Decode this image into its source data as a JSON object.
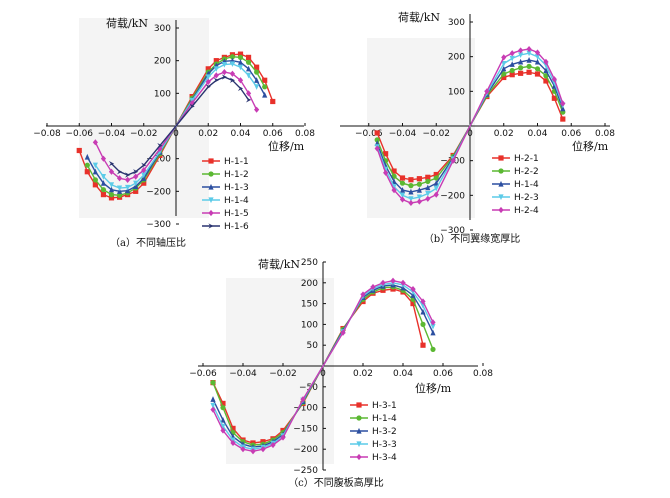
{
  "chart_data": [
    {
      "type": "line",
      "panel": "a",
      "caption": "（a）不同轴压比",
      "xlabel": "位移/m",
      "ylabel": "荷载/kN",
      "xlim": [
        -0.08,
        0.08
      ],
      "ylim": [
        -300,
        300
      ],
      "xticks": [
        -0.08,
        -0.06,
        -0.04,
        -0.02,
        0,
        0.02,
        0.04,
        0.06,
        0.08
      ],
      "yticks": [
        -300,
        -200,
        -100,
        0,
        100,
        200,
        300
      ],
      "xtick_labels": [
        "−0.08",
        "−0.06",
        "−0.04",
        "−0.02",
        "0",
        "0.02",
        "0.04",
        "0.06",
        "0.08"
      ],
      "ytick_labels": [
        "−300",
        "−200",
        "−100",
        "0",
        "100",
        "200",
        "300"
      ],
      "legend_position": "right",
      "series": [
        {
          "name": "H-1-1",
          "color": "#e8312a",
          "marker": "square",
          "x": [
            0,
            0.01,
            0.02,
            0.025,
            0.03,
            0.035,
            0.04,
            0.045,
            0.05,
            0.055,
            0.06,
            -0.01,
            -0.02,
            -0.025,
            -0.03,
            -0.035,
            -0.04,
            -0.045,
            -0.05,
            -0.055,
            -0.06
          ],
          "y": [
            0,
            90,
            175,
            200,
            210,
            218,
            220,
            210,
            180,
            140,
            75,
            -90,
            -175,
            -200,
            -210,
            -218,
            -220,
            -210,
            -180,
            -140,
            -75
          ]
        },
        {
          "name": "H-1-2",
          "color": "#5bb832",
          "marker": "circle",
          "x": [
            0,
            0.01,
            0.02,
            0.025,
            0.03,
            0.035,
            0.04,
            0.045,
            0.05,
            0.055,
            -0.01,
            -0.02,
            -0.025,
            -0.03,
            -0.035,
            -0.04,
            -0.045,
            -0.05,
            -0.055
          ],
          "y": [
            0,
            85,
            165,
            190,
            205,
            212,
            210,
            195,
            165,
            120,
            -85,
            -165,
            -190,
            -205,
            -212,
            -210,
            -195,
            -165,
            -120
          ]
        },
        {
          "name": "H-1-3",
          "color": "#2c4fa0",
          "marker": "triangle",
          "x": [
            0,
            0.01,
            0.02,
            0.025,
            0.03,
            0.035,
            0.04,
            0.045,
            0.05,
            0.055,
            -0.01,
            -0.02,
            -0.025,
            -0.03,
            -0.035,
            -0.04,
            -0.045,
            -0.05,
            -0.055
          ],
          "y": [
            0,
            80,
            160,
            185,
            198,
            200,
            195,
            175,
            140,
            95,
            -80,
            -160,
            -185,
            -198,
            -200,
            -195,
            -175,
            -140,
            -95
          ]
        },
        {
          "name": "H-1-4",
          "color": "#5ccbe8",
          "marker": "triangle-down",
          "x": [
            0,
            0.01,
            0.02,
            0.025,
            0.03,
            0.035,
            0.04,
            0.045,
            0.05,
            -0.01,
            -0.02,
            -0.025,
            -0.03,
            -0.035,
            -0.04,
            -0.045,
            -0.05
          ],
          "y": [
            0,
            78,
            150,
            175,
            188,
            190,
            180,
            155,
            120,
            -78,
            -150,
            -175,
            -188,
            -190,
            -180,
            -155,
            -120
          ]
        },
        {
          "name": "H-1-5",
          "color": "#c83cb4",
          "marker": "diamond",
          "x": [
            0,
            0.01,
            0.02,
            0.025,
            0.03,
            0.035,
            0.04,
            0.045,
            0.05,
            -0.01,
            -0.02,
            -0.025,
            -0.03,
            -0.035,
            -0.04,
            -0.045,
            -0.05
          ],
          "y": [
            0,
            70,
            135,
            155,
            165,
            160,
            140,
            100,
            50,
            -70,
            -135,
            -155,
            -165,
            -160,
            -140,
            -100,
            -50
          ]
        },
        {
          "name": "H-1-6",
          "color": "#2a3470",
          "marker": "arrow",
          "x": [
            0,
            0.01,
            0.02,
            0.025,
            0.03,
            0.035,
            0.04,
            0.045,
            -0.01,
            -0.02,
            -0.025,
            -0.03,
            -0.035,
            -0.04
          ],
          "y": [
            0,
            60,
            120,
            140,
            150,
            140,
            115,
            80,
            -60,
            -120,
            -140,
            -150,
            -140,
            -115
          ]
        }
      ]
    },
    {
      "type": "line",
      "panel": "b",
      "caption": "（b）不同翼缘宽厚比",
      "xlabel": "位移/m",
      "ylabel": "荷载/kN",
      "xlim": [
        -0.08,
        0.08
      ],
      "ylim": [
        -300,
        300
      ],
      "xticks": [
        -0.06,
        -0.04,
        -0.02,
        0,
        0.02,
        0.04,
        0.06,
        0.08
      ],
      "yticks": [
        -300,
        -200,
        -100,
        0,
        100,
        200,
        300
      ],
      "xtick_labels": [
        "−0.06",
        "−0.04",
        "−0.02",
        "0",
        "0.02",
        "0.04",
        "0.06",
        "0.08"
      ],
      "ytick_labels": [
        "−300",
        "−200",
        "−100",
        "0",
        "100",
        "200",
        "300"
      ],
      "legend_position": "right",
      "series": [
        {
          "name": "H-2-1",
          "color": "#e8312a",
          "marker": "square",
          "x": [
            0,
            0.01,
            0.02,
            0.025,
            0.03,
            0.035,
            0.04,
            0.045,
            0.05,
            0.055,
            -0.01,
            -0.02,
            -0.025,
            -0.03,
            -0.035,
            -0.04,
            -0.045,
            -0.05,
            -0.055
          ],
          "y": [
            0,
            85,
            140,
            148,
            152,
            155,
            150,
            130,
            80,
            20,
            -85,
            -140,
            -148,
            -152,
            -155,
            -150,
            -130,
            -80,
            -20
          ]
        },
        {
          "name": "H-2-2",
          "color": "#5bb832",
          "marker": "circle",
          "x": [
            0,
            0.01,
            0.02,
            0.025,
            0.03,
            0.035,
            0.04,
            0.045,
            0.05,
            0.055,
            -0.01,
            -0.02,
            -0.025,
            -0.03,
            -0.035,
            -0.04,
            -0.045,
            -0.05,
            -0.055
          ],
          "y": [
            0,
            88,
            150,
            160,
            168,
            172,
            165,
            145,
            100,
            40,
            -88,
            -150,
            -160,
            -168,
            -172,
            -165,
            -145,
            -100,
            -40
          ]
        },
        {
          "name": "H-1-4",
          "color": "#2c4fa0",
          "marker": "triangle",
          "x": [
            0,
            0.01,
            0.02,
            0.025,
            0.03,
            0.035,
            0.04,
            0.045,
            0.05,
            0.055,
            -0.01,
            -0.02,
            -0.025,
            -0.03,
            -0.035,
            -0.04,
            -0.045,
            -0.05,
            -0.055
          ],
          "y": [
            0,
            92,
            165,
            178,
            185,
            190,
            185,
            160,
            115,
            50,
            -92,
            -165,
            -178,
            -185,
            -190,
            -185,
            -160,
            -115,
            -50
          ]
        },
        {
          "name": "H-2-3",
          "color": "#5ccbe8",
          "marker": "triangle-down",
          "x": [
            0,
            0.01,
            0.02,
            0.025,
            0.03,
            0.035,
            0.04,
            0.045,
            0.05,
            0.055,
            -0.01,
            -0.02,
            -0.025,
            -0.03,
            -0.035,
            -0.04,
            -0.045,
            -0.05,
            -0.055
          ],
          "y": [
            0,
            95,
            180,
            195,
            205,
            210,
            200,
            175,
            125,
            60,
            -95,
            -180,
            -195,
            -205,
            -210,
            -200,
            -175,
            -125,
            -60
          ]
        },
        {
          "name": "H-2-4",
          "color": "#c83cb4",
          "marker": "diamond",
          "x": [
            0,
            0.01,
            0.02,
            0.025,
            0.03,
            0.035,
            0.04,
            0.045,
            0.05,
            0.055,
            -0.01,
            -0.02,
            -0.025,
            -0.03,
            -0.035,
            -0.04,
            -0.045,
            -0.05,
            -0.055
          ],
          "y": [
            0,
            100,
            198,
            210,
            218,
            222,
            212,
            185,
            135,
            65,
            -100,
            -198,
            -210,
            -218,
            -222,
            -212,
            -185,
            -135,
            -65
          ]
        }
      ]
    },
    {
      "type": "line",
      "panel": "c",
      "caption": "（c）不同腹板高厚比",
      "xlabel": "位移/m",
      "ylabel": "荷载/kN",
      "xlim": [
        -0.06,
        0.08
      ],
      "ylim": [
        -250,
        250
      ],
      "xticks": [
        -0.06,
        -0.04,
        -0.02,
        0,
        0.02,
        0.04,
        0.06,
        0.08
      ],
      "yticks": [
        -250,
        -200,
        -150,
        -100,
        -50,
        0,
        50,
        100,
        150,
        200,
        250
      ],
      "xtick_labels": [
        "−0.06",
        "−0.04",
        "−0.02",
        "0",
        "0.02",
        "0.04",
        "0.06",
        "0.08"
      ],
      "ytick_labels": [
        "−250",
        "−200",
        "−150",
        "−100",
        "−50",
        "0",
        "50",
        "100",
        "150",
        "200",
        "250"
      ],
      "legend_position": "left",
      "series": [
        {
          "name": "H-3-1",
          "color": "#e8312a",
          "marker": "square",
          "x": [
            0,
            0.01,
            0.02,
            0.025,
            0.03,
            0.035,
            0.04,
            0.045,
            0.05,
            -0.01,
            -0.02,
            -0.025,
            -0.03,
            -0.035,
            -0.04,
            -0.045,
            -0.05,
            -0.055
          ],
          "y": [
            0,
            90,
            155,
            175,
            182,
            185,
            178,
            150,
            50,
            -90,
            -155,
            -175,
            -182,
            -185,
            -178,
            -150,
            -90,
            -40
          ]
        },
        {
          "name": "H-1-4",
          "color": "#5bb832",
          "marker": "circle",
          "x": [
            0,
            0.01,
            0.02,
            0.025,
            0.03,
            0.035,
            0.04,
            0.045,
            0.05,
            0.055,
            -0.01,
            -0.02,
            -0.025,
            -0.03,
            -0.035,
            -0.04,
            -0.045,
            -0.05,
            -0.055
          ],
          "y": [
            0,
            88,
            160,
            178,
            188,
            190,
            182,
            160,
            100,
            40,
            -88,
            -160,
            -178,
            -188,
            -190,
            -182,
            -160,
            -100,
            -40
          ]
        },
        {
          "name": "H-3-2",
          "color": "#2c4fa0",
          "marker": "triangle",
          "x": [
            0,
            0.01,
            0.02,
            0.025,
            0.03,
            0.035,
            0.04,
            0.045,
            0.05,
            0.055,
            -0.01,
            -0.02,
            -0.025,
            -0.03,
            -0.035,
            -0.04,
            -0.045,
            -0.05,
            -0.055
          ],
          "y": [
            0,
            85,
            165,
            182,
            192,
            195,
            188,
            170,
            130,
            80,
            -85,
            -165,
            -182,
            -192,
            -195,
            -188,
            -170,
            -130,
            -80
          ]
        },
        {
          "name": "H-3-3",
          "color": "#5ccbe8",
          "marker": "triangle-down",
          "x": [
            0,
            0.01,
            0.02,
            0.025,
            0.03,
            0.035,
            0.04,
            0.045,
            0.05,
            0.055,
            -0.01,
            -0.02,
            -0.025,
            -0.03,
            -0.035,
            -0.04,
            -0.045,
            -0.05,
            -0.055
          ],
          "y": [
            0,
            82,
            168,
            186,
            196,
            200,
            195,
            178,
            145,
            95,
            -82,
            -168,
            -186,
            -196,
            -200,
            -195,
            -178,
            -145,
            -95
          ]
        },
        {
          "name": "H-3-4",
          "color": "#c83cb4",
          "marker": "diamond",
          "x": [
            0,
            0.01,
            0.02,
            0.025,
            0.03,
            0.035,
            0.04,
            0.045,
            0.05,
            0.055,
            -0.01,
            -0.02,
            -0.025,
            -0.03,
            -0.035,
            -0.04,
            -0.045,
            -0.05,
            -0.055
          ],
          "y": [
            0,
            80,
            172,
            190,
            200,
            205,
            200,
            185,
            155,
            105,
            -80,
            -172,
            -190,
            -200,
            -205,
            -200,
            -185,
            -155,
            -105
          ]
        }
      ]
    }
  ]
}
